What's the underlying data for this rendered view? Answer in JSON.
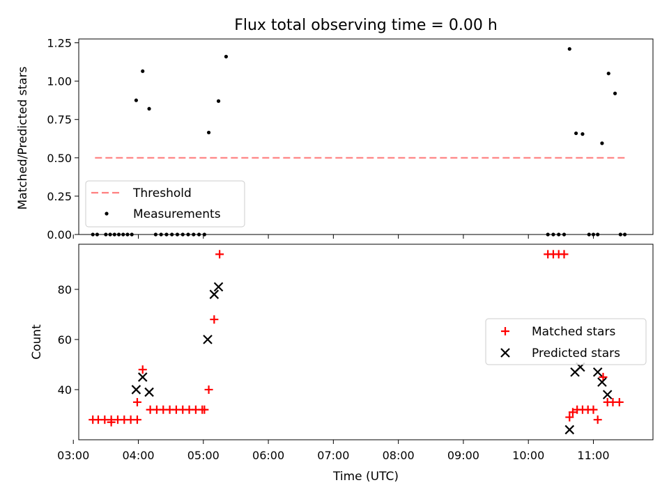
{
  "chart_data": [
    {
      "type": "scatter",
      "title": "Flux total observing time = 0.00 h",
      "ylabel": "Matched/Predicted stars",
      "xlabel": "",
      "xlim": [
        "03:05",
        "11:55"
      ],
      "ylim": [
        0,
        1.275
      ],
      "yticks": [
        "0.00",
        "0.25",
        "0.50",
        "0.75",
        "1.00",
        "1.25"
      ],
      "threshold": {
        "name": "Threshold",
        "value": 0.5,
        "x": [
          "03:20",
          "11:30"
        ],
        "color": "#ff7f7f"
      },
      "measurements": {
        "name": "Measurements",
        "color": "#000000",
        "points": [
          [
            "03:18",
            0
          ],
          [
            "03:22",
            0
          ],
          [
            "03:30",
            0
          ],
          [
            "03:34",
            0
          ],
          [
            "03:38",
            0
          ],
          [
            "03:42",
            0
          ],
          [
            "03:46",
            0
          ],
          [
            "03:50",
            0
          ],
          [
            "03:54",
            0
          ],
          [
            "03:58",
            0.875
          ],
          [
            "04:04",
            1.065
          ],
          [
            "04:10",
            0.82
          ],
          [
            "04:16",
            0
          ],
          [
            "04:21",
            0
          ],
          [
            "04:26",
            0
          ],
          [
            "04:31",
            0
          ],
          [
            "04:36",
            0
          ],
          [
            "04:41",
            0
          ],
          [
            "04:46",
            0
          ],
          [
            "04:51",
            0
          ],
          [
            "04:56",
            0
          ],
          [
            "05:01",
            0
          ],
          [
            "05:05",
            0.665
          ],
          [
            "05:14",
            0.87
          ],
          [
            "05:21",
            1.16
          ],
          [
            "10:18",
            0
          ],
          [
            "10:23",
            0
          ],
          [
            "10:28",
            0
          ],
          [
            "10:33",
            0
          ],
          [
            "10:38",
            1.21
          ],
          [
            "10:44",
            0.66
          ],
          [
            "10:50",
            0.655
          ],
          [
            "10:56",
            0
          ],
          [
            "11:00",
            0
          ],
          [
            "11:04",
            0
          ],
          [
            "11:08",
            0.595
          ],
          [
            "11:14",
            1.05
          ],
          [
            "11:20",
            0.92
          ],
          [
            "11:25",
            0
          ],
          [
            "11:29",
            0
          ]
        ]
      },
      "legend": {
        "position": "lower left",
        "entries": [
          "Threshold",
          "Measurements"
        ]
      }
    },
    {
      "type": "scatter",
      "title": "",
      "ylabel": "Count",
      "xlabel": "Time (UTC)",
      "xlim": [
        "03:05",
        "11:55"
      ],
      "ylim": [
        20,
        98
      ],
      "yticks": [
        "40",
        "60",
        "80"
      ],
      "xticks": [
        "03:00",
        "04:00",
        "05:00",
        "06:00",
        "07:00",
        "08:00",
        "09:00",
        "10:00",
        "11:00"
      ],
      "series": [
        {
          "name": "Matched stars",
          "marker": "plus",
          "color": "#ff0000",
          "points": [
            [
              "03:18",
              28
            ],
            [
              "03:23",
              28
            ],
            [
              "03:29",
              28
            ],
            [
              "03:35",
              28
            ],
            [
              "03:35",
              27
            ],
            [
              "03:41",
              28
            ],
            [
              "03:47",
              28
            ],
            [
              "03:53",
              28
            ],
            [
              "03:59",
              28
            ],
            [
              "03:59",
              35
            ],
            [
              "04:04",
              48
            ],
            [
              "04:11",
              32
            ],
            [
              "04:17",
              32
            ],
            [
              "04:23",
              32
            ],
            [
              "04:29",
              32
            ],
            [
              "04:35",
              32
            ],
            [
              "04:41",
              32
            ],
            [
              "04:47",
              32
            ],
            [
              "04:53",
              32
            ],
            [
              "04:59",
              32
            ],
            [
              "05:01",
              32
            ],
            [
              "05:05",
              40
            ],
            [
              "05:10",
              68
            ],
            [
              "05:15",
              94
            ],
            [
              "10:18",
              94
            ],
            [
              "10:23",
              94
            ],
            [
              "10:28",
              94
            ],
            [
              "10:33",
              94
            ],
            [
              "10:38",
              29
            ],
            [
              "10:41",
              31
            ],
            [
              "10:45",
              32
            ],
            [
              "10:50",
              32
            ],
            [
              "10:55",
              32
            ],
            [
              "11:00",
              32
            ],
            [
              "11:04",
              28
            ],
            [
              "11:09",
              45
            ],
            [
              "11:13",
              35
            ],
            [
              "11:18",
              35
            ],
            [
              "11:24",
              35
            ]
          ]
        },
        {
          "name": "Predicted stars",
          "marker": "x",
          "color": "#000000",
          "points": [
            [
              "03:58",
              40
            ],
            [
              "04:04",
              45
            ],
            [
              "04:10",
              39
            ],
            [
              "05:04",
              60
            ],
            [
              "05:10",
              78
            ],
            [
              "05:14",
              81
            ],
            [
              "10:38",
              24
            ],
            [
              "10:43",
              47
            ],
            [
              "10:48",
              49
            ],
            [
              "11:04",
              47
            ],
            [
              "11:08",
              43
            ],
            [
              "11:13",
              38
            ]
          ]
        }
      ],
      "legend": {
        "position": "center right",
        "entries": [
          "Matched stars",
          "Predicted stars"
        ]
      }
    }
  ]
}
